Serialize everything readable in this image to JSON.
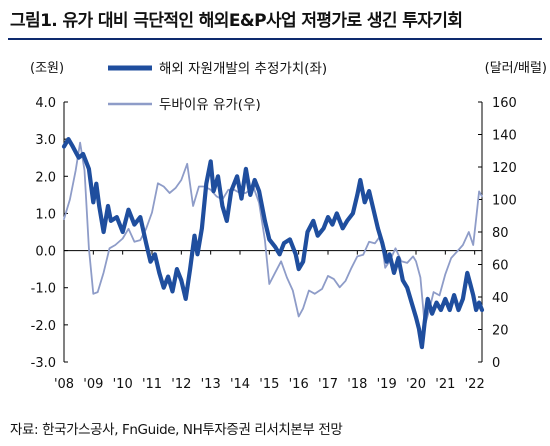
{
  "title": "그림1. 유가 대비 극단적인 해외E&P사업 저평가로 생긴 투자기회",
  "source": "자료: 한국가스공사, FnGuide, NH투자증권 리서치본부 전망",
  "colors": {
    "primary": "#1f4e9e",
    "secondary": "#8e9cc8",
    "axis": "#000000",
    "title_rule": "#0e2a6e"
  },
  "chart_data": {
    "type": "line",
    "left_axis": {
      "unit": "(조원)",
      "range": [
        -3.0,
        4.0
      ],
      "ticks": [
        "4.0",
        "3.0",
        "2.0",
        "1.0",
        "0.0",
        "-1.0",
        "-2.0",
        "-3.0"
      ]
    },
    "right_axis": {
      "unit": "(달러/배럴)",
      "range": [
        0,
        160
      ],
      "ticks": [
        "160",
        "140",
        "120",
        "100",
        "80",
        "60",
        "40",
        "20",
        "0"
      ]
    },
    "x_axis": {
      "range": [
        2008,
        2022.25
      ],
      "ticks": [
        "'08",
        "'09",
        "'10",
        "'11",
        "'12",
        "'13",
        "'14",
        "'15",
        "'16",
        "'17",
        "'18",
        "'19",
        "'20",
        "'21",
        "'22"
      ]
    },
    "grid": false,
    "legend_placement": "top-center",
    "series": [
      {
        "name": "해외 자원개발의 추정가치(좌)",
        "axis": "left",
        "color": "#1f4e9e",
        "points": [
          [
            2008.0,
            2.8
          ],
          [
            2008.15,
            3.0
          ],
          [
            2008.3,
            2.8
          ],
          [
            2008.5,
            2.5
          ],
          [
            2008.65,
            2.6
          ],
          [
            2008.85,
            2.2
          ],
          [
            2009.0,
            1.3
          ],
          [
            2009.1,
            1.8
          ],
          [
            2009.2,
            1.2
          ],
          [
            2009.35,
            0.5
          ],
          [
            2009.5,
            1.2
          ],
          [
            2009.6,
            0.8
          ],
          [
            2009.8,
            0.9
          ],
          [
            2010.0,
            0.5
          ],
          [
            2010.2,
            1.1
          ],
          [
            2010.4,
            0.7
          ],
          [
            2010.6,
            0.9
          ],
          [
            2010.8,
            0.2
          ],
          [
            2010.95,
            -0.3
          ],
          [
            2011.1,
            -0.1
          ],
          [
            2011.25,
            -0.6
          ],
          [
            2011.4,
            -1.0
          ],
          [
            2011.55,
            -0.7
          ],
          [
            2011.7,
            -1.1
          ],
          [
            2011.85,
            -0.5
          ],
          [
            2012.0,
            -0.8
          ],
          [
            2012.15,
            -1.3
          ],
          [
            2012.3,
            -0.5
          ],
          [
            2012.45,
            0.4
          ],
          [
            2012.55,
            -0.1
          ],
          [
            2012.7,
            0.6
          ],
          [
            2012.85,
            1.8
          ],
          [
            2013.0,
            2.4
          ],
          [
            2013.1,
            1.6
          ],
          [
            2013.25,
            2.0
          ],
          [
            2013.4,
            1.2
          ],
          [
            2013.55,
            0.8
          ],
          [
            2013.7,
            1.6
          ],
          [
            2013.9,
            2.0
          ],
          [
            2014.05,
            1.4
          ],
          [
            2014.2,
            2.2
          ],
          [
            2014.35,
            1.5
          ],
          [
            2014.5,
            1.9
          ],
          [
            2014.65,
            1.6
          ],
          [
            2014.85,
            0.8
          ],
          [
            2015.0,
            0.3
          ],
          [
            2015.2,
            0.1
          ],
          [
            2015.35,
            -0.1
          ],
          [
            2015.5,
            0.2
          ],
          [
            2015.7,
            0.3
          ],
          [
            2015.9,
            -0.1
          ],
          [
            2016.0,
            -0.5
          ],
          [
            2016.15,
            -0.3
          ],
          [
            2016.3,
            0.5
          ],
          [
            2016.5,
            0.8
          ],
          [
            2016.65,
            0.4
          ],
          [
            2016.85,
            0.6
          ],
          [
            2017.0,
            0.9
          ],
          [
            2017.15,
            0.7
          ],
          [
            2017.3,
            1.0
          ],
          [
            2017.5,
            0.6
          ],
          [
            2017.65,
            0.8
          ],
          [
            2017.85,
            1.0
          ],
          [
            2018.0,
            1.5
          ],
          [
            2018.1,
            1.9
          ],
          [
            2018.25,
            1.3
          ],
          [
            2018.4,
            1.6
          ],
          [
            2018.55,
            1.1
          ],
          [
            2018.7,
            0.6
          ],
          [
            2018.85,
            0.2
          ],
          [
            2019.0,
            -0.3
          ],
          [
            2019.1,
            -0.1
          ],
          [
            2019.25,
            -0.6
          ],
          [
            2019.4,
            -0.2
          ],
          [
            2019.55,
            -0.8
          ],
          [
            2019.7,
            -1.0
          ],
          [
            2019.85,
            -1.4
          ],
          [
            2020.0,
            -1.8
          ],
          [
            2020.1,
            -2.1
          ],
          [
            2020.2,
            -2.6
          ],
          [
            2020.3,
            -1.9
          ],
          [
            2020.4,
            -1.3
          ],
          [
            2020.55,
            -1.7
          ],
          [
            2020.7,
            -1.4
          ],
          [
            2020.85,
            -1.6
          ],
          [
            2021.0,
            -1.3
          ],
          [
            2021.15,
            -1.6
          ],
          [
            2021.3,
            -1.2
          ],
          [
            2021.45,
            -1.6
          ],
          [
            2021.6,
            -1.3
          ],
          [
            2021.75,
            -0.6
          ],
          [
            2021.85,
            -0.9
          ],
          [
            2021.95,
            -1.2
          ],
          [
            2022.05,
            -1.6
          ],
          [
            2022.15,
            -1.4
          ],
          [
            2022.25,
            -1.6
          ]
        ]
      },
      {
        "name": "두바이유 유가(우)",
        "axis": "right",
        "color": "#8e9cc8",
        "points": [
          [
            2008.0,
            88
          ],
          [
            2008.2,
            100
          ],
          [
            2008.4,
            118
          ],
          [
            2008.55,
            135
          ],
          [
            2008.7,
            118
          ],
          [
            2008.85,
            70
          ],
          [
            2009.0,
            42
          ],
          [
            2009.15,
            43
          ],
          [
            2009.35,
            55
          ],
          [
            2009.55,
            70
          ],
          [
            2009.75,
            72
          ],
          [
            2010.0,
            76
          ],
          [
            2010.2,
            82
          ],
          [
            2010.4,
            74
          ],
          [
            2010.6,
            75
          ],
          [
            2010.8,
            82
          ],
          [
            2011.0,
            92
          ],
          [
            2011.2,
            110
          ],
          [
            2011.4,
            108
          ],
          [
            2011.6,
            104
          ],
          [
            2011.8,
            107
          ],
          [
            2012.0,
            112
          ],
          [
            2012.2,
            122
          ],
          [
            2012.4,
            96
          ],
          [
            2012.6,
            108
          ],
          [
            2012.8,
            108
          ],
          [
            2013.0,
            106
          ],
          [
            2013.2,
            102
          ],
          [
            2013.4,
            100
          ],
          [
            2013.6,
            106
          ],
          [
            2013.8,
            106
          ],
          [
            2014.0,
            104
          ],
          [
            2014.2,
            104
          ],
          [
            2014.45,
            108
          ],
          [
            2014.65,
            98
          ],
          [
            2014.85,
            75
          ],
          [
            2015.0,
            48
          ],
          [
            2015.2,
            55
          ],
          [
            2015.4,
            62
          ],
          [
            2015.6,
            52
          ],
          [
            2015.8,
            44
          ],
          [
            2016.0,
            28
          ],
          [
            2016.15,
            33
          ],
          [
            2016.35,
            44
          ],
          [
            2016.55,
            42
          ],
          [
            2016.8,
            45
          ],
          [
            2017.0,
            53
          ],
          [
            2017.2,
            51
          ],
          [
            2017.4,
            46
          ],
          [
            2017.6,
            50
          ],
          [
            2017.8,
            58
          ],
          [
            2018.0,
            65
          ],
          [
            2018.2,
            66
          ],
          [
            2018.4,
            74
          ],
          [
            2018.6,
            73
          ],
          [
            2018.8,
            78
          ],
          [
            2018.95,
            58
          ],
          [
            2019.1,
            62
          ],
          [
            2019.3,
            70
          ],
          [
            2019.5,
            62
          ],
          [
            2019.7,
            61
          ],
          [
            2019.9,
            65
          ],
          [
            2020.0,
            62
          ],
          [
            2020.15,
            52
          ],
          [
            2020.3,
            22
          ],
          [
            2020.45,
            32
          ],
          [
            2020.6,
            43
          ],
          [
            2020.8,
            41
          ],
          [
            2021.0,
            54
          ],
          [
            2021.2,
            64
          ],
          [
            2021.4,
            68
          ],
          [
            2021.6,
            72
          ],
          [
            2021.8,
            80
          ],
          [
            2021.95,
            72
          ],
          [
            2022.05,
            88
          ],
          [
            2022.15,
            105
          ],
          [
            2022.25,
            102
          ]
        ]
      }
    ]
  }
}
